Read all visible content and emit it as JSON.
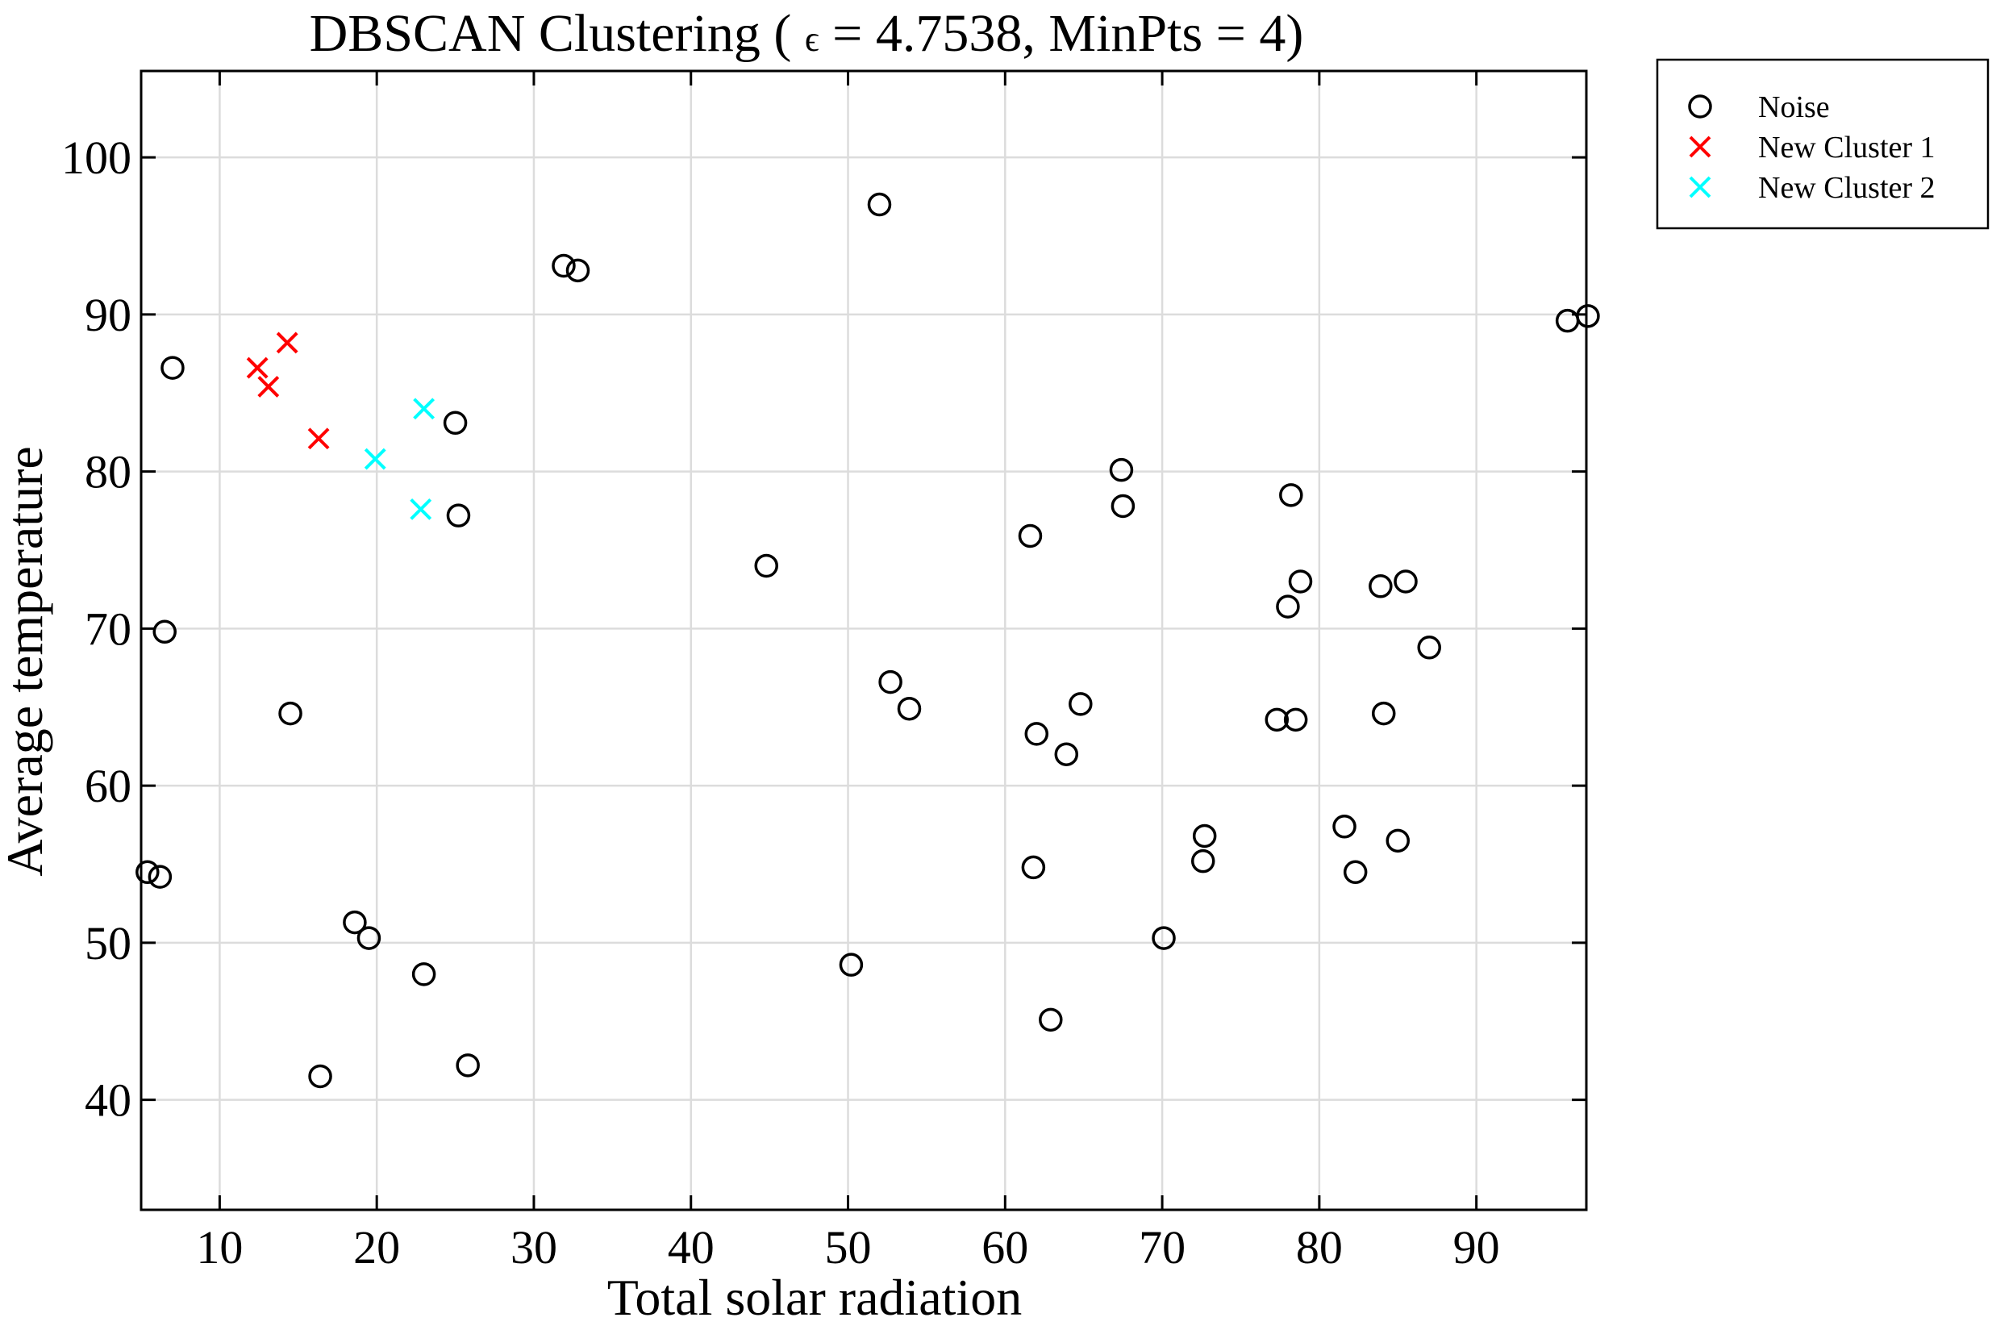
{
  "chart_data": {
    "type": "scatter",
    "title_parts": {
      "prefix": "DBSCAN Clustering ( ",
      "epsilon": "ϵ",
      "suffix": " = 4.7538, MinPts = 4)"
    },
    "xlabel": "Total solar radiation",
    "ylabel": "Average temperature",
    "xlim": [
      5,
      97
    ],
    "ylim": [
      33,
      105.5
    ],
    "xticks": [
      10,
      20,
      30,
      40,
      50,
      60,
      70,
      80,
      90
    ],
    "yticks": [
      40,
      50,
      60,
      70,
      80,
      90,
      100
    ],
    "grid": true,
    "legend_position": "outside-top-right",
    "series": [
      {
        "name": "Noise",
        "marker": "circle",
        "color": "#000000",
        "points": [
          [
            5.4,
            54.5
          ],
          [
            6.2,
            54.2
          ],
          [
            6.5,
            69.8
          ],
          [
            7,
            86.6
          ],
          [
            14.5,
            64.6
          ],
          [
            16.4,
            41.5
          ],
          [
            18.6,
            51.3
          ],
          [
            19.5,
            50.3
          ],
          [
            23,
            48
          ],
          [
            25,
            83.1
          ],
          [
            25.2,
            77.2
          ],
          [
            25.8,
            42.2
          ],
          [
            31.9,
            93.1
          ],
          [
            32.8,
            92.8
          ],
          [
            44.8,
            74
          ],
          [
            50.2,
            48.6
          ],
          [
            52,
            97
          ],
          [
            52.7,
            66.6
          ],
          [
            53.9,
            64.9
          ],
          [
            61.6,
            75.9
          ],
          [
            61.8,
            54.8
          ],
          [
            62,
            63.3
          ],
          [
            62.9,
            45.1
          ],
          [
            63.9,
            62
          ],
          [
            64.8,
            65.2
          ],
          [
            67.4,
            80.1
          ],
          [
            67.5,
            77.8
          ],
          [
            70.1,
            50.3
          ],
          [
            72.6,
            55.2
          ],
          [
            72.7,
            56.8
          ],
          [
            77.3,
            64.2
          ],
          [
            78,
            71.4
          ],
          [
            78.2,
            78.5
          ],
          [
            78.5,
            64.2
          ],
          [
            78.8,
            73
          ],
          [
            81.6,
            57.4
          ],
          [
            82.3,
            54.5
          ],
          [
            83.9,
            72.7
          ],
          [
            84.1,
            64.6
          ],
          [
            85,
            56.5
          ],
          [
            85.5,
            73
          ],
          [
            87,
            68.8
          ],
          [
            95.8,
            89.6
          ],
          [
            97.1,
            89.9
          ]
        ]
      },
      {
        "name": "New Cluster 1",
        "marker": "x",
        "color": "#ff0000",
        "points": [
          [
            12.4,
            86.6
          ],
          [
            13.1,
            85.4
          ],
          [
            14.3,
            88.2
          ],
          [
            16.3,
            82.1
          ]
        ]
      },
      {
        "name": "New Cluster 2",
        "marker": "x",
        "color": "#00ffff",
        "points": [
          [
            19.9,
            80.8
          ],
          [
            22.8,
            77.6
          ],
          [
            23,
            84
          ]
        ]
      }
    ]
  }
}
